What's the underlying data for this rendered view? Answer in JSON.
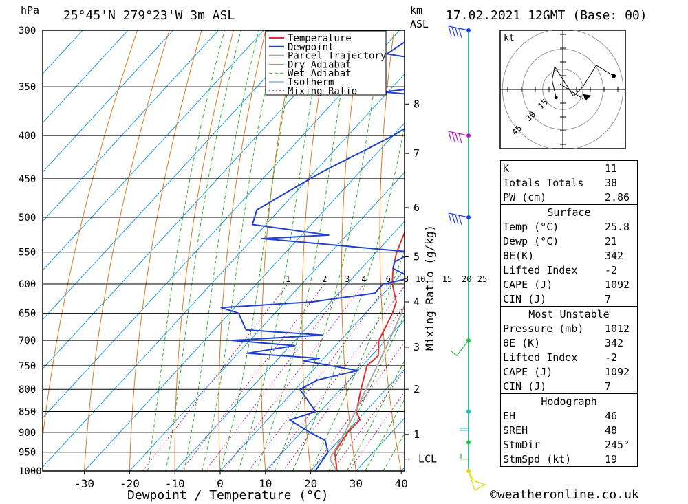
{
  "header": {
    "pressure_unit": "hPa",
    "location": "25°45'N 279°23'W 3m ASL",
    "km_label": "km",
    "asl_label": "ASL",
    "datetime": "17.02.2021 12GMT (Base: 00)"
  },
  "chart_data": {
    "type": "line",
    "xlabel": "Dewpoint / Temperature (°C)",
    "ylabel": "Mixing Ratio (g/kg)",
    "x_ticks": [
      -30,
      -20,
      -10,
      0,
      10,
      20,
      30,
      40
    ],
    "pressure_levels": [
      300,
      350,
      400,
      450,
      500,
      550,
      600,
      650,
      700,
      750,
      800,
      850,
      900,
      950,
      1000
    ],
    "km_ticks": [
      {
        "label": "8",
        "p": 367
      },
      {
        "label": "7",
        "p": 420
      },
      {
        "label": "6",
        "p": 487
      },
      {
        "label": "5",
        "p": 557
      },
      {
        "label": "4",
        "p": 630
      },
      {
        "label": "3",
        "p": 713
      },
      {
        "label": "2",
        "p": 800
      },
      {
        "label": "1",
        "p": 905
      },
      {
        "label": "LCL",
        "p": 968
      }
    ],
    "mixing_ratio_labels": [
      "1",
      "2",
      "3",
      "4",
      "6",
      "8",
      "10",
      "15",
      "20",
      "25"
    ],
    "legend": [
      "Temperature",
      "Dewpoint",
      "Parcel Trajectory",
      "Dry Adiabat",
      "Wet Adiabat",
      "Isotherm",
      "Mixing Ratio"
    ],
    "series": [
      {
        "name": "Temperature",
        "color": "#e03030",
        "points": [
          [
            1000,
            25.8
          ],
          [
            950,
            21.5
          ],
          [
            900,
            20.3
          ],
          [
            870,
            20.5
          ],
          [
            850,
            18
          ],
          [
            800,
            14.5
          ],
          [
            750,
            11
          ],
          [
            730,
            11.5
          ],
          [
            700,
            8.5
          ],
          [
            650,
            6
          ],
          [
            630,
            4.5
          ],
          [
            600,
            0
          ],
          [
            575,
            -3
          ],
          [
            550,
            -5.5
          ],
          [
            500,
            -9.5
          ],
          [
            450,
            -16
          ],
          [
            400,
            -24
          ],
          [
            375,
            -29
          ],
          [
            350,
            -32.5
          ],
          [
            300,
            -42
          ]
        ]
      },
      {
        "name": "Dewpoint",
        "color": "#2040d0",
        "points": [
          [
            1000,
            21
          ],
          [
            950,
            20
          ],
          [
            920,
            17
          ],
          [
            900,
            12
          ],
          [
            870,
            5
          ],
          [
            850,
            9
          ],
          [
            800,
            1
          ],
          [
            780,
            3
          ],
          [
            760,
            10
          ],
          [
            740,
            -4
          ],
          [
            735,
            -1
          ],
          [
            725,
            -18
          ],
          [
            710,
            -9
          ],
          [
            700,
            -24
          ],
          [
            690,
            -5
          ],
          [
            680,
            -23
          ],
          [
            650,
            -28
          ],
          [
            640,
            -33
          ],
          [
            630,
            -14
          ],
          [
            625,
            -10
          ],
          [
            615,
            -2
          ],
          [
            600,
            -2
          ],
          [
            590,
            3
          ],
          [
            575,
            -3
          ],
          [
            565,
            -4
          ],
          [
            550,
            -2
          ],
          [
            530,
            -38
          ],
          [
            525,
            -24
          ],
          [
            510,
            -43
          ],
          [
            490,
            -45
          ],
          [
            460,
            -41
          ],
          [
            440,
            -38
          ],
          [
            420,
            -34
          ],
          [
            400,
            -30
          ],
          [
            380,
            -27
          ],
          [
            370,
            -30
          ],
          [
            362,
            -22
          ],
          [
            355,
            -41
          ],
          [
            345,
            -23
          ],
          [
            330,
            -30
          ],
          [
            320,
            -48
          ],
          [
            300,
            -45
          ]
        ]
      },
      {
        "name": "Parcel Trajectory",
        "color": "#a8a8a8",
        "points": [
          [
            1000,
            25.8
          ],
          [
            968,
            21.8
          ],
          [
            900,
            19.7
          ],
          [
            850,
            17.8
          ],
          [
            800,
            15.6
          ],
          [
            750,
            13.3
          ],
          [
            700,
            10.8
          ],
          [
            650,
            8
          ],
          [
            600,
            4.8
          ],
          [
            550,
            1.2
          ],
          [
            500,
            -3
          ],
          [
            450,
            -8
          ],
          [
            400,
            -14
          ],
          [
            350,
            -22
          ],
          [
            300,
            -32
          ]
        ]
      }
    ]
  },
  "hodograph": {
    "unit": "kt",
    "ring_labels": [
      "15",
      "30",
      "45"
    ],
    "points": [
      [
        -5,
        -6
      ],
      [
        -8,
        7
      ],
      [
        -6,
        17
      ],
      [
        8,
        -5
      ],
      [
        15,
        2
      ],
      [
        25,
        18
      ],
      [
        38,
        10
      ]
    ]
  },
  "stats": {
    "k_label": "K",
    "k": "11",
    "tt_label": "Totals Totals",
    "tt": "38",
    "pw_label": "PW (cm)",
    "pw": "2.86",
    "surface_title": "Surface",
    "temp_label": "Temp (°C)",
    "temp": "25.8",
    "dewp_label": "Dewp (°C)",
    "dewp": "21",
    "theta_label": "θE(K)",
    "theta": "342",
    "li_label": "Lifted Index",
    "li": "-2",
    "cape_label": "CAPE (J)",
    "cape": "1092",
    "cin_label": "CIN (J)",
    "cin": "7",
    "mu_title": "Most Unstable",
    "mu_pressure_label": "Pressure (mb)",
    "mu_pressure": "1012",
    "mu_theta_label": "θE (K)",
    "mu_theta": "342",
    "mu_li_label": "Lifted Index",
    "mu_li": "-2",
    "mu_cape_label": "CAPE (J)",
    "mu_cape": "1092",
    "mu_cin_label": "CIN (J)",
    "mu_cin": "7",
    "hodo_title": "Hodograph",
    "eh_label": "EH",
    "eh": "46",
    "sreh_label": "SREH",
    "sreh": "48",
    "stmdir_label": "StmDir",
    "stmdir": "245°",
    "stmspd_label": "StmSpd (kt)",
    "stmspd": "19"
  },
  "footer": {
    "copyright": "©weatheronline.co.uk"
  },
  "colors": {
    "isotherm": "#1fa0e0",
    "dry_adiabat": "#e07820",
    "wet_adiabat": "#30b030",
    "mixing_ratio": "#c01890",
    "wind": "#00a060"
  }
}
